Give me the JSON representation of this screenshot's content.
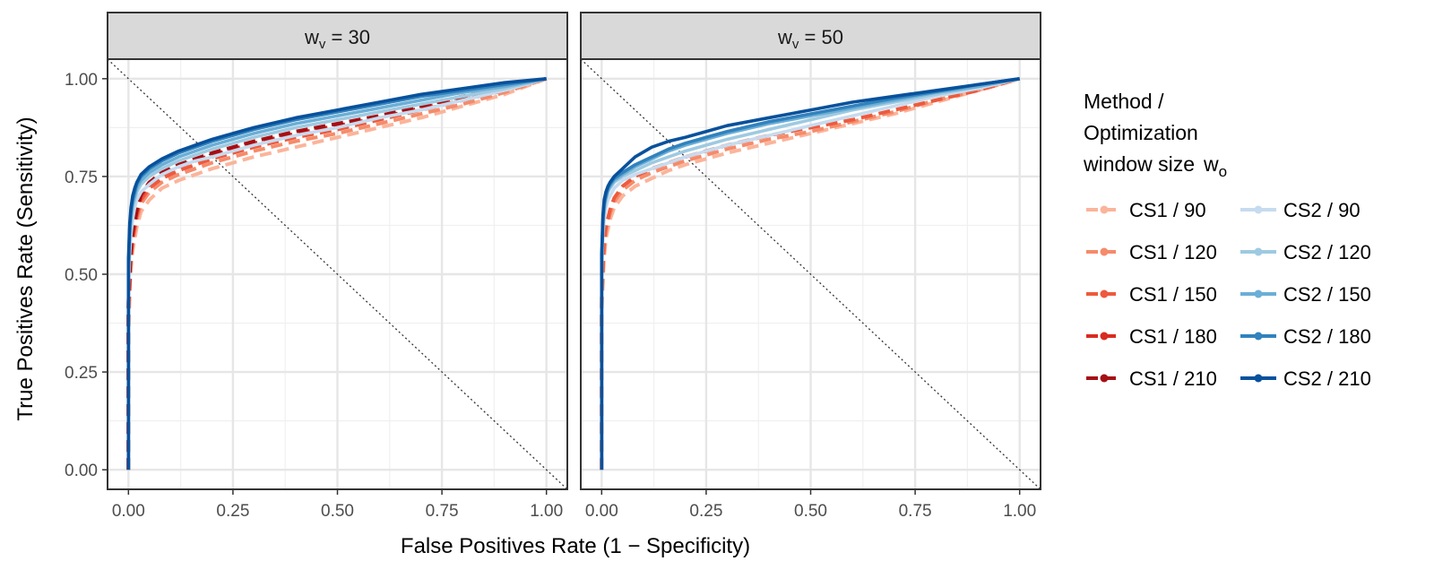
{
  "chart_data": {
    "type": "line",
    "xlabel": "False Positives Rate (1 − Specificity)",
    "ylabel": "True Positives Rate (Sensitivity)",
    "xlim": [
      -0.05,
      1.05
    ],
    "ylim": [
      -0.05,
      1.05
    ],
    "xticks": [
      0,
      0.25,
      0.5,
      0.75,
      1.0
    ],
    "xtick_labels": [
      "0.00",
      "0.25",
      "0.50",
      "0.75",
      "1.00"
    ],
    "yticks": [
      0,
      0.25,
      0.5,
      0.75,
      1.0
    ],
    "ytick_labels": [
      "0.00",
      "0.25",
      "0.50",
      "0.75",
      "1.00"
    ],
    "grid": true,
    "reference_line": "diagonal dotted line from (-0.05, 1.05) to (1.05, -0.05)",
    "legend": {
      "title_lines": [
        "Method /",
        "Optimization",
        "window size"
      ],
      "title_symbol": "w",
      "title_symbol_sub": "o",
      "placement": "right",
      "entries": [
        "CS1 / 90",
        "CS1 / 120",
        "CS1 / 150",
        "CS1 / 180",
        "CS1 / 210",
        "CS2 / 90",
        "CS2 / 120",
        "CS2 / 150",
        "CS2 / 180",
        "CS2 / 210"
      ]
    },
    "panels": [
      {
        "strip_symbol": "w",
        "strip_sub": "v",
        "strip_rest": " = 30",
        "series": [
          {
            "name": "CS1 / 90",
            "color": "#fbb49a",
            "dashed": true,
            "x": [
              0,
              0,
              0.005,
              0.01,
              0.02,
              0.03,
              0.05,
              0.08,
              0.12,
              0.16,
              0.2,
              0.25,
              0.3,
              0.4,
              0.5,
              0.6,
              0.7,
              0.8,
              0.9,
              1.0
            ],
            "y": [
              0,
              0.35,
              0.5,
              0.56,
              0.62,
              0.66,
              0.69,
              0.72,
              0.74,
              0.755,
              0.77,
              0.785,
              0.8,
              0.825,
              0.85,
              0.875,
              0.9,
              0.93,
              0.96,
              1.0
            ]
          },
          {
            "name": "CS1 / 120",
            "color": "#f58b6b",
            "dashed": true,
            "x": [
              0,
              0,
              0.005,
              0.01,
              0.02,
              0.03,
              0.05,
              0.08,
              0.12,
              0.16,
              0.2,
              0.25,
              0.3,
              0.4,
              0.5,
              0.6,
              0.7,
              0.8,
              0.9,
              1.0
            ],
            "y": [
              0,
              0.38,
              0.52,
              0.58,
              0.64,
              0.68,
              0.71,
              0.735,
              0.755,
              0.77,
              0.785,
              0.8,
              0.815,
              0.84,
              0.86,
              0.885,
              0.91,
              0.935,
              0.965,
              1.0
            ]
          },
          {
            "name": "CS1 / 150",
            "color": "#ee5a3e",
            "dashed": true,
            "x": [
              0,
              0,
              0.005,
              0.01,
              0.02,
              0.03,
              0.05,
              0.08,
              0.12,
              0.16,
              0.2,
              0.25,
              0.3,
              0.4,
              0.5,
              0.6,
              0.7,
              0.8,
              0.9,
              1.0
            ],
            "y": [
              0,
              0.4,
              0.53,
              0.59,
              0.65,
              0.69,
              0.72,
              0.745,
              0.765,
              0.78,
              0.795,
              0.81,
              0.825,
              0.85,
              0.87,
              0.895,
              0.92,
              0.945,
              0.97,
              1.0
            ]
          },
          {
            "name": "CS1 / 180",
            "color": "#d92b20",
            "dashed": true,
            "x": [
              0,
              0,
              0.005,
              0.01,
              0.02,
              0.03,
              0.05,
              0.08,
              0.12,
              0.16,
              0.2,
              0.25,
              0.3,
              0.4,
              0.5,
              0.6,
              0.7,
              0.8,
              0.9,
              1.0
            ],
            "y": [
              0,
              0.42,
              0.54,
              0.6,
              0.66,
              0.7,
              0.73,
              0.755,
              0.775,
              0.79,
              0.805,
              0.82,
              0.835,
              0.86,
              0.88,
              0.9,
              0.925,
              0.95,
              0.975,
              1.0
            ]
          },
          {
            "name": "CS1 / 210",
            "color": "#a50f15",
            "dashed": true,
            "x": [
              0,
              0,
              0.005,
              0.01,
              0.02,
              0.03,
              0.05,
              0.08,
              0.12,
              0.16,
              0.2,
              0.25,
              0.3,
              0.4,
              0.5,
              0.6,
              0.7,
              0.8,
              0.9,
              1.0
            ],
            "y": [
              0,
              0.43,
              0.55,
              0.61,
              0.665,
              0.705,
              0.735,
              0.76,
              0.78,
              0.795,
              0.81,
              0.825,
              0.84,
              0.865,
              0.885,
              0.905,
              0.93,
              0.955,
              0.975,
              1.0
            ]
          },
          {
            "name": "CS2 / 90",
            "color": "#c6dbef",
            "dashed": false,
            "x": [
              0,
              0,
              0.003,
              0.006,
              0.01,
              0.015,
              0.02,
              0.03,
              0.05,
              0.08,
              0.12,
              0.16,
              0.2,
              0.25,
              0.3,
              0.4,
              0.5,
              0.6,
              0.7,
              0.8,
              0.9,
              1.0
            ],
            "y": [
              0,
              0.45,
              0.55,
              0.6,
              0.64,
              0.67,
              0.69,
              0.71,
              0.73,
              0.755,
              0.775,
              0.79,
              0.8,
              0.815,
              0.83,
              0.855,
              0.875,
              0.9,
              0.92,
              0.945,
              0.97,
              1.0
            ]
          },
          {
            "name": "CS2 / 120",
            "color": "#9ecae1",
            "dashed": false,
            "x": [
              0,
              0,
              0.003,
              0.006,
              0.01,
              0.015,
              0.02,
              0.03,
              0.05,
              0.08,
              0.12,
              0.16,
              0.2,
              0.25,
              0.3,
              0.4,
              0.5,
              0.6,
              0.7,
              0.8,
              0.9,
              1.0
            ],
            "y": [
              0,
              0.48,
              0.58,
              0.63,
              0.67,
              0.69,
              0.71,
              0.73,
              0.75,
              0.77,
              0.79,
              0.805,
              0.82,
              0.835,
              0.85,
              0.875,
              0.895,
              0.915,
              0.935,
              0.955,
              0.975,
              1.0
            ]
          },
          {
            "name": "CS2 / 150",
            "color": "#6baed6",
            "dashed": false,
            "x": [
              0,
              0,
              0.003,
              0.006,
              0.01,
              0.015,
              0.02,
              0.03,
              0.05,
              0.08,
              0.12,
              0.16,
              0.2,
              0.25,
              0.3,
              0.4,
              0.5,
              0.6,
              0.7,
              0.8,
              0.9,
              1.0
            ],
            "y": [
              0,
              0.5,
              0.6,
              0.65,
              0.68,
              0.7,
              0.72,
              0.74,
              0.76,
              0.78,
              0.8,
              0.815,
              0.83,
              0.845,
              0.86,
              0.885,
              0.905,
              0.925,
              0.945,
              0.965,
              0.98,
              1.0
            ]
          },
          {
            "name": "CS2 / 180",
            "color": "#3182bd",
            "dashed": false,
            "x": [
              0,
              0,
              0.003,
              0.006,
              0.01,
              0.015,
              0.02,
              0.03,
              0.05,
              0.08,
              0.12,
              0.16,
              0.2,
              0.25,
              0.3,
              0.4,
              0.5,
              0.6,
              0.7,
              0.8,
              0.9,
              1.0
            ],
            "y": [
              0,
              0.52,
              0.62,
              0.66,
              0.69,
              0.71,
              0.73,
              0.75,
              0.77,
              0.79,
              0.81,
              0.825,
              0.84,
              0.855,
              0.87,
              0.895,
              0.915,
              0.935,
              0.955,
              0.97,
              0.985,
              1.0
            ]
          },
          {
            "name": "CS2 / 210",
            "color": "#08519c",
            "dashed": false,
            "x": [
              0,
              0,
              0.003,
              0.006,
              0.01,
              0.015,
              0.02,
              0.03,
              0.05,
              0.08,
              0.12,
              0.16,
              0.2,
              0.25,
              0.3,
              0.4,
              0.5,
              0.6,
              0.7,
              0.8,
              0.9,
              1.0
            ],
            "y": [
              0,
              0.54,
              0.63,
              0.67,
              0.7,
              0.72,
              0.735,
              0.755,
              0.775,
              0.795,
              0.815,
              0.83,
              0.845,
              0.86,
              0.875,
              0.9,
              0.92,
              0.94,
              0.96,
              0.975,
              0.99,
              1.0
            ]
          }
        ]
      },
      {
        "strip_symbol": "w",
        "strip_sub": "v",
        "strip_rest": " = 50",
        "series": [
          {
            "name": "CS1 / 90",
            "color": "#fbb49a",
            "dashed": true,
            "x": [
              0,
              0,
              0.005,
              0.01,
              0.02,
              0.03,
              0.05,
              0.08,
              0.12,
              0.16,
              0.2,
              0.25,
              0.3,
              0.4,
              0.5,
              0.6,
              0.7,
              0.8,
              0.9,
              1.0
            ],
            "y": [
              0,
              0.4,
              0.53,
              0.59,
              0.64,
              0.67,
              0.7,
              0.725,
              0.745,
              0.765,
              0.78,
              0.795,
              0.81,
              0.835,
              0.86,
              0.885,
              0.91,
              0.94,
              0.97,
              1.0
            ]
          },
          {
            "name": "CS1 / 120",
            "color": "#f58b6b",
            "dashed": true,
            "x": [
              0,
              0,
              0.005,
              0.01,
              0.02,
              0.03,
              0.05,
              0.08,
              0.12,
              0.16,
              0.2,
              0.25,
              0.3,
              0.4,
              0.5,
              0.6,
              0.7,
              0.8,
              0.9,
              1.0
            ],
            "y": [
              0,
              0.42,
              0.55,
              0.61,
              0.655,
              0.685,
              0.715,
              0.74,
              0.76,
              0.775,
              0.79,
              0.805,
              0.82,
              0.845,
              0.865,
              0.89,
              0.915,
              0.945,
              0.97,
              1.0
            ]
          },
          {
            "name": "CS1 / 150",
            "color": "#ee5a3e",
            "dashed": true,
            "x": [
              0,
              0,
              0.005,
              0.01,
              0.02,
              0.03,
              0.05,
              0.08,
              0.12,
              0.16,
              0.2,
              0.25,
              0.3,
              0.4,
              0.5,
              0.6,
              0.7,
              0.8,
              0.9,
              1.0
            ],
            "y": [
              0,
              0.44,
              0.57,
              0.62,
              0.665,
              0.695,
              0.725,
              0.75,
              0.77,
              0.785,
              0.8,
              0.815,
              0.83,
              0.855,
              0.875,
              0.895,
              0.92,
              0.945,
              0.97,
              1.0
            ]
          },
          {
            "name": "CS2 / 90",
            "color": "#c6dbef",
            "dashed": false,
            "x": [
              0,
              0,
              0.003,
              0.006,
              0.01,
              0.015,
              0.02,
              0.03,
              0.05,
              0.08,
              0.12,
              0.16,
              0.2,
              0.25,
              0.3,
              0.4,
              0.5,
              0.6,
              0.7,
              0.8,
              0.9,
              1.0
            ],
            "y": [
              0,
              0.5,
              0.6,
              0.64,
              0.67,
              0.69,
              0.7,
              0.72,
              0.74,
              0.755,
              0.77,
              0.785,
              0.8,
              0.815,
              0.83,
              0.855,
              0.88,
              0.905,
              0.93,
              0.955,
              0.975,
              1.0
            ]
          },
          {
            "name": "CS2 / 120",
            "color": "#9ecae1",
            "dashed": false,
            "x": [
              0,
              0,
              0.003,
              0.006,
              0.01,
              0.015,
              0.02,
              0.03,
              0.05,
              0.08,
              0.12,
              0.16,
              0.2,
              0.25,
              0.3,
              0.4,
              0.5,
              0.6,
              0.7,
              0.8,
              0.9,
              1.0
            ],
            "y": [
              0,
              0.52,
              0.62,
              0.66,
              0.69,
              0.71,
              0.72,
              0.735,
              0.75,
              0.765,
              0.785,
              0.8,
              0.815,
              0.83,
              0.845,
              0.87,
              0.895,
              0.92,
              0.94,
              0.96,
              0.98,
              1.0
            ]
          },
          {
            "name": "CS2 / 150",
            "color": "#6baed6",
            "dashed": false,
            "x": [
              0,
              0,
              0.003,
              0.006,
              0.01,
              0.015,
              0.02,
              0.03,
              0.05,
              0.08,
              0.12,
              0.16,
              0.2,
              0.25,
              0.3,
              0.4,
              0.5,
              0.6,
              0.7,
              0.8,
              0.9,
              1.0
            ],
            "y": [
              0,
              0.53,
              0.63,
              0.67,
              0.695,
              0.715,
              0.725,
              0.74,
              0.755,
              0.775,
              0.795,
              0.815,
              0.83,
              0.845,
              0.86,
              0.885,
              0.905,
              0.925,
              0.945,
              0.965,
              0.98,
              1.0
            ]
          },
          {
            "name": "CS2 / 180",
            "color": "#3182bd",
            "dashed": false,
            "x": [
              0,
              0,
              0.003,
              0.006,
              0.01,
              0.015,
              0.02,
              0.03,
              0.05,
              0.08,
              0.12,
              0.16,
              0.2,
              0.25,
              0.3,
              0.4,
              0.5,
              0.6,
              0.7,
              0.8,
              0.9,
              1.0
            ],
            "y": [
              0,
              0.54,
              0.64,
              0.68,
              0.7,
              0.72,
              0.73,
              0.745,
              0.76,
              0.78,
              0.8,
              0.82,
              0.835,
              0.85,
              0.865,
              0.89,
              0.91,
              0.93,
              0.95,
              0.967,
              0.985,
              1.0
            ]
          },
          {
            "name": "CS2 / 210",
            "color": "#08519c",
            "dashed": false,
            "x": [
              0,
              0,
              0.003,
              0.006,
              0.01,
              0.015,
              0.02,
              0.03,
              0.05,
              0.08,
              0.12,
              0.16,
              0.2,
              0.25,
              0.3,
              0.4,
              0.5,
              0.6,
              0.7,
              0.8,
              0.9,
              1.0
            ],
            "y": [
              0,
              0.55,
              0.65,
              0.69,
              0.71,
              0.725,
              0.735,
              0.75,
              0.77,
              0.8,
              0.825,
              0.84,
              0.85,
              0.865,
              0.88,
              0.9,
              0.92,
              0.94,
              0.955,
              0.97,
              0.985,
              1.0
            ]
          }
        ]
      }
    ]
  }
}
